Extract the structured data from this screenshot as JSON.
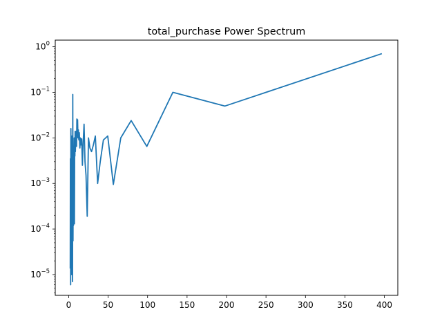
{
  "chart_data": {
    "type": "line",
    "title": "total_purchase Power Spectrum",
    "xlabel": "",
    "ylabel": "",
    "xscale": "linear",
    "yscale": "log",
    "xlim": [
      -17,
      417
    ],
    "ylim": [
      3.5e-06,
      1.4
    ],
    "grid": false,
    "legend": "none",
    "x_ticks": [
      0,
      50,
      100,
      150,
      200,
      250,
      300,
      350,
      400
    ],
    "x_tick_labels": [
      "0",
      "50",
      "100",
      "150",
      "200",
      "250",
      "300",
      "350",
      "400"
    ],
    "y_ticks": [
      1e-05,
      0.0001,
      0.001,
      0.01,
      0.1,
      1
    ],
    "y_tick_labels": [
      {
        "base": "10",
        "exp": "−5"
      },
      {
        "base": "10",
        "exp": "−4"
      },
      {
        "base": "10",
        "exp": "−3"
      },
      {
        "base": "10",
        "exp": "−2"
      },
      {
        "base": "10",
        "exp": "−1"
      },
      {
        "base": "10",
        "exp": "0"
      }
    ],
    "series": [
      {
        "color": "#1f77b4",
        "x": [
          2.0,
          2.2,
          2.5,
          2.8,
          3.1,
          3.4,
          3.7,
          4.0,
          4.3,
          4.6,
          4.9,
          5.2,
          5.5,
          5.8,
          6.1,
          6.4,
          6.7,
          7.0,
          7.3,
          7.6,
          7.9,
          8.2,
          8.5,
          8.8,
          9.2,
          9.6,
          10.0,
          10.4,
          10.8,
          11.3,
          11.8,
          12.3,
          12.9,
          13.5,
          14.2,
          14.9,
          15.7,
          16.5,
          17.4,
          18.4,
          19.5,
          20.7,
          22.0,
          23.5,
          25.1,
          26.9,
          29.0,
          31.3,
          33.8,
          36.7,
          40.0,
          44.0,
          49.5,
          56.6,
          66.0,
          79.2,
          99.0,
          132.0,
          198.0,
          396.0
        ],
        "y": [
          1.4e-05,
          0.0035,
          6e-06,
          0.016,
          0.00018,
          0.003,
          1e-05,
          0.011,
          0.00012,
          0.009,
          7e-06,
          0.09,
          5.5e-05,
          0.003,
          0.00012,
          0.006,
          0.0035,
          0.01,
          0.00013,
          0.007,
          0.004,
          0.014,
          0.005,
          0.01,
          0.007,
          0.014,
          0.0065,
          0.026,
          0.012,
          0.025,
          0.01,
          0.015,
          0.009,
          0.013,
          0.006,
          0.01,
          0.007,
          0.0095,
          0.0025,
          0.008,
          0.02,
          0.003,
          0.0015,
          0.00019,
          0.01,
          0.006,
          0.005,
          0.007,
          0.011,
          0.001,
          0.003,
          0.009,
          0.011,
          0.00095,
          0.01,
          0.024,
          0.0065,
          0.1,
          0.05,
          0.7
        ]
      }
    ]
  }
}
